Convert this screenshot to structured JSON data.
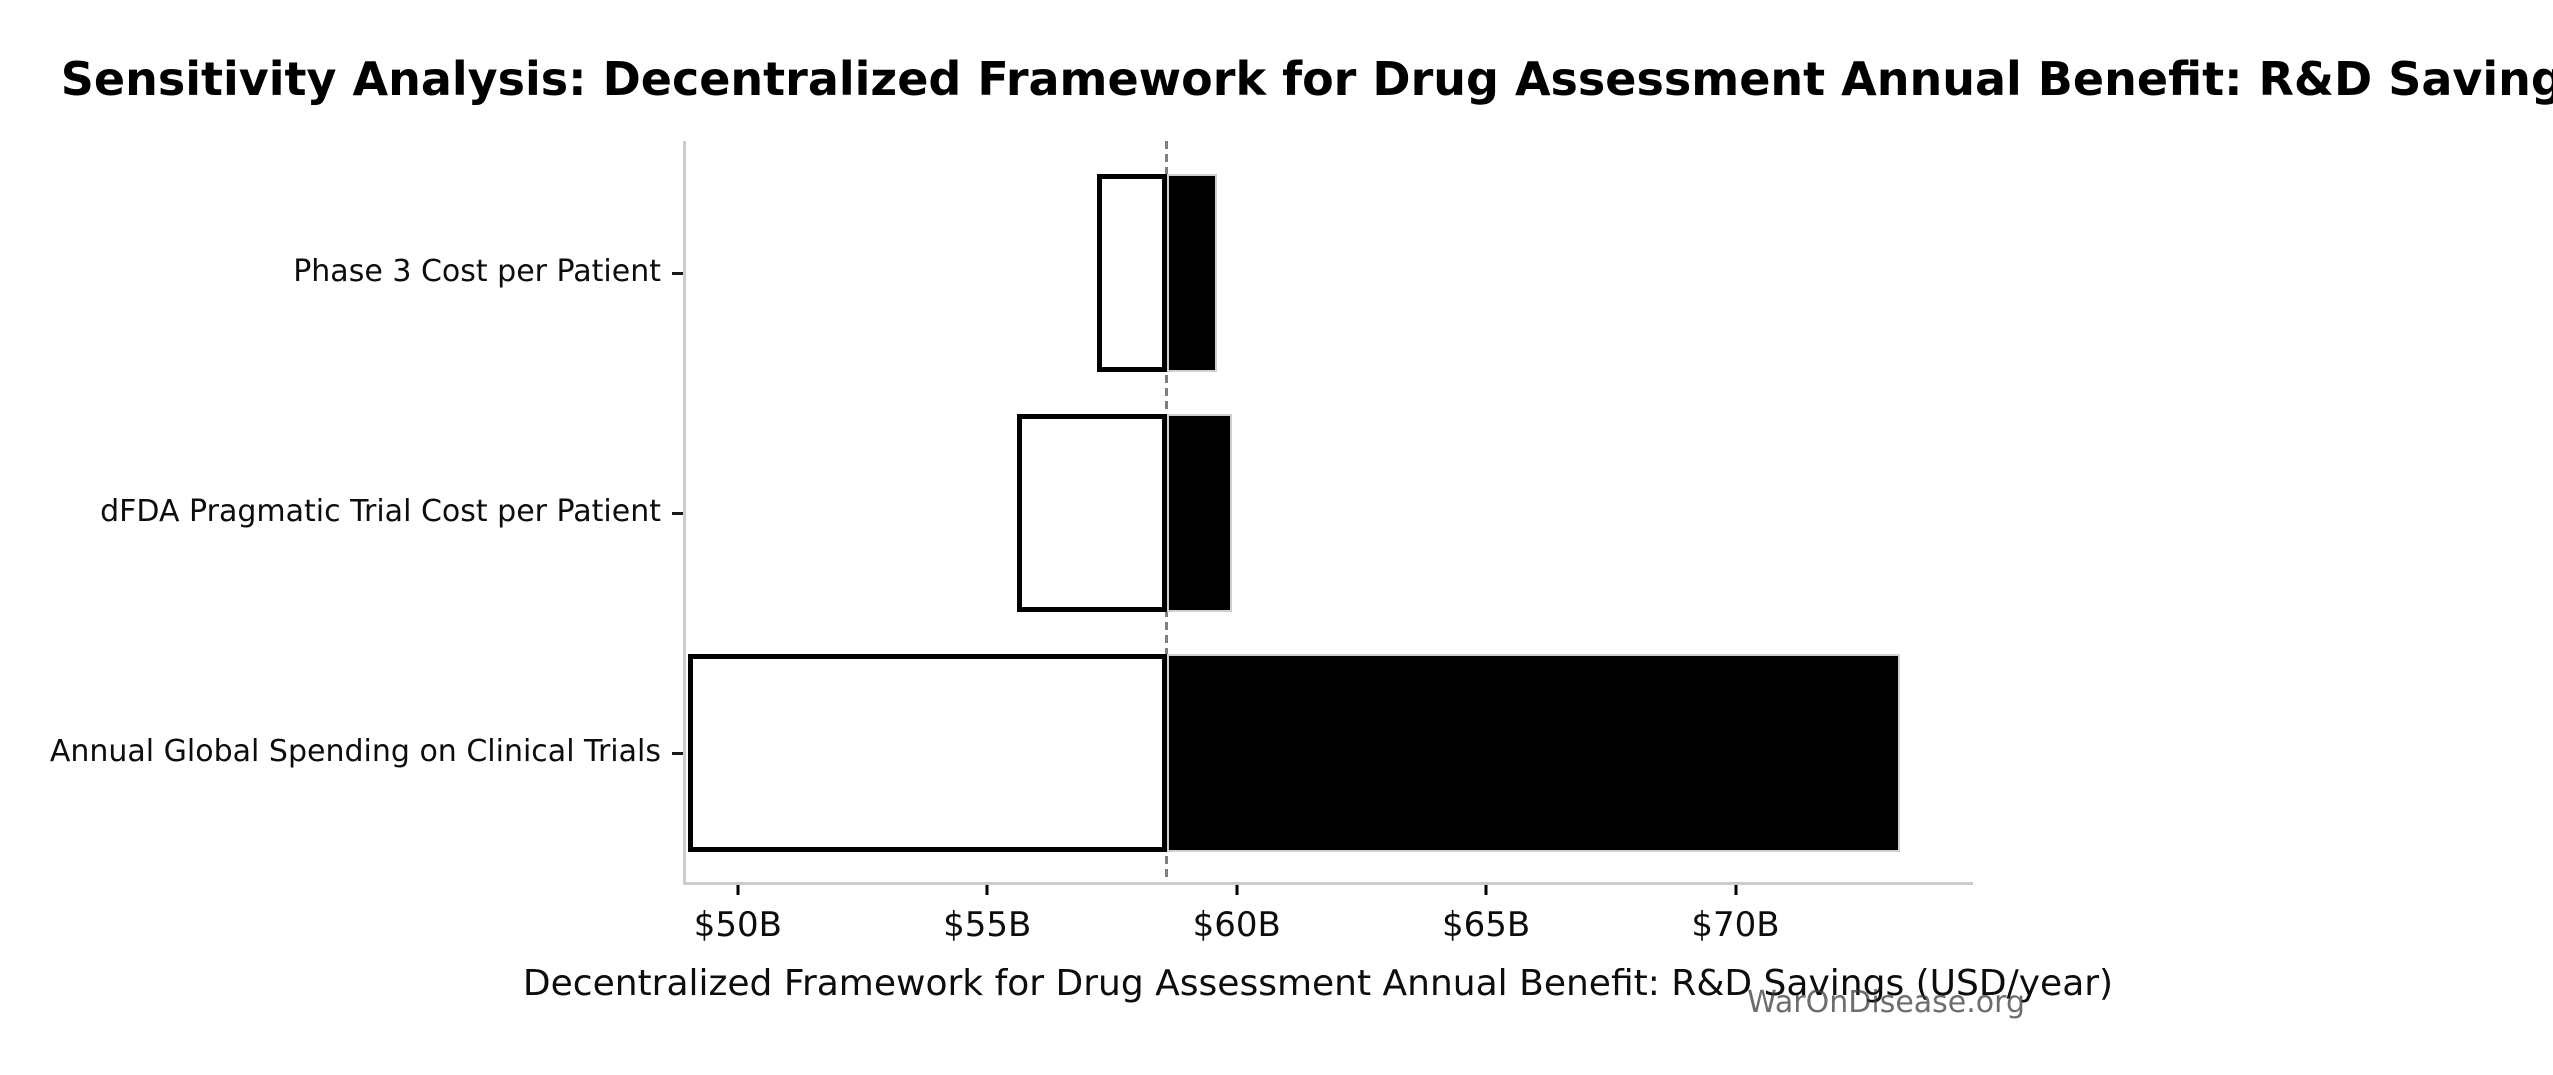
{
  "title": {
    "text": "Sensitivity Analysis: Decentralized Framework for Drug Assessment Annual Benefit: R&D Savings"
  },
  "watermark": {
    "text": "WarOnDisease.org",
    "color": "#3c3c3c"
  },
  "chart_data": {
    "type": "bar",
    "variant": "tornado-sensitivity",
    "orientation": "horizontal",
    "title": "Sensitivity Analysis: Decentralized Framework for Drug Assessment Annual Benefit: R&D Savings",
    "xlabel": "Decentralized Framework for Drug Assessment Annual Benefit: R&D Savings (USD/year)",
    "ylabel": "",
    "unit": "USD billions per year",
    "xlim": [
      48.9,
      74.7
    ],
    "baseline": 58.6,
    "grid": false,
    "legend_position": "none",
    "x_ticks": [
      {
        "value": 50,
        "label": "$50B"
      },
      {
        "value": 55,
        "label": "$55B"
      },
      {
        "value": 60,
        "label": "$60B"
      },
      {
        "value": 65,
        "label": "$65B"
      },
      {
        "value": 70,
        "label": "$70B"
      }
    ],
    "categories": [
      "Phase 3 Cost per Patient",
      "dFDA Pragmatic Trial Cost per Patient",
      "Annual Global Spending on Clinical Trials"
    ],
    "bars": [
      {
        "label": "Phase 3 Cost per Patient",
        "low": 57.2,
        "high": 59.6
      },
      {
        "label": "dFDA Pragmatic Trial Cost per Patient",
        "low": 55.6,
        "high": 59.9
      },
      {
        "label": "Annual Global Spending on Clinical Trials",
        "low": 49.0,
        "high": 73.3
      }
    ],
    "colors": {
      "low_fill": "#ffffff",
      "low_edge": "#000000",
      "high_fill": "#000000",
      "high_edge": "#d0d0d0",
      "baseline_line": "#7f7f7f",
      "spine": "#cccccc"
    }
  }
}
